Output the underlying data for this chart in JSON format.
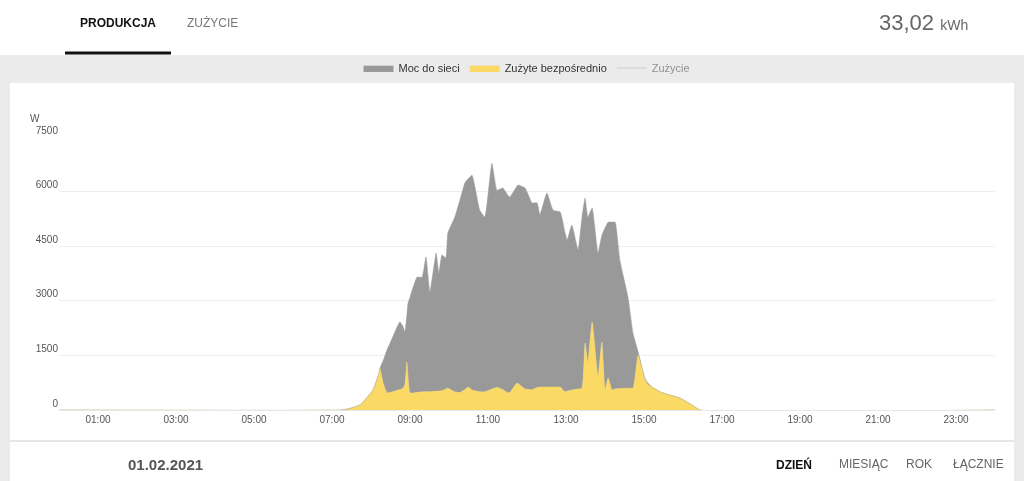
{
  "chart_data": {
    "type": "area",
    "stacked": true,
    "ylabel": "W",
    "x": [
      0,
      7.2,
      7.4,
      7.72,
      8.05,
      8.2,
      8.23,
      8.31,
      8.41,
      8.49,
      8.74,
      8.82,
      8.87,
      8.92,
      8.95,
      9.0,
      9.18,
      9.31,
      9.41,
      9.51,
      9.67,
      9.74,
      9.82,
      9.92,
      9.97,
      10.15,
      10.28,
      10.41,
      10.49,
      10.59,
      10.79,
      10.92,
      11.1,
      11.23,
      11.38,
      11.51,
      11.56,
      11.74,
      11.77,
      11.95,
      12.13,
      12.26,
      12.33,
      12.51,
      12.67,
      12.85,
      12.97,
      13.03,
      13.15,
      13.31,
      13.41,
      13.49,
      13.56,
      13.67,
      13.82,
      13.92,
      14.0,
      14.08,
      14.18,
      14.26,
      14.38,
      14.59,
      14.72,
      14.85,
      15.03,
      15.1,
      15.21,
      15.41,
      15.67,
      15.92,
      16.23,
      16.44,
      24
    ],
    "series": [
      {
        "name": "Zużyte bezpośrednio",
        "color": "#fad964",
        "values": [
          0,
          0,
          30,
          140,
          550,
          1000,
          1150,
          740,
          470,
          480,
          560,
          600,
          700,
          1320,
          900,
          470,
          480,
          500,
          500,
          500,
          520,
          520,
          530,
          580,
          600,
          500,
          480,
          560,
          630,
          550,
          500,
          500,
          580,
          620,
          560,
          470,
          480,
          740,
          730,
          580,
          560,
          620,
          630,
          630,
          630,
          630,
          500,
          520,
          550,
          580,
          600,
          1840,
          1290,
          2420,
          910,
          1870,
          550,
          880,
          550,
          580,
          590,
          600,
          600,
          1510,
          820,
          700,
          630,
          500,
          410,
          330,
          140,
          0,
          0
        ]
      },
      {
        "name": "Moc do sieci",
        "color": "#999999",
        "values": [
          0,
          0,
          0,
          0,
          0,
          0,
          0,
          610,
          1180,
          1360,
          1860,
          1700,
          1440,
          1280,
          2040,
          2630,
          3170,
          3150,
          3700,
          2740,
          3790,
          3240,
          3730,
          3600,
          4260,
          4800,
          5290,
          5680,
          5720,
          5900,
          4990,
          4800,
          6200,
          5420,
          5540,
          5430,
          5370,
          5410,
          5450,
          5520,
          5130,
          5070,
          4730,
          5330,
          4860,
          4810,
          4400,
          4150,
          4530,
          3820,
          4700,
          3980,
          4010,
          3130,
          3400,
          2930,
          4450,
          4280,
          4610,
          4580,
          3530,
          2500,
          1500,
          90,
          30,
          40,
          0,
          0,
          0,
          0,
          0,
          0,
          0
        ]
      },
      {
        "name": "Zużycie",
        "type": "line",
        "color": "#cccccc",
        "values": [
          null,
          null,
          null,
          null,
          null,
          null,
          null,
          null,
          null,
          null,
          null,
          null,
          null,
          null,
          null,
          null,
          null,
          null,
          null,
          null,
          null,
          null,
          null,
          null,
          null,
          null,
          null,
          null,
          null,
          null,
          null,
          null,
          null,
          null,
          null,
          null,
          null,
          null,
          null,
          null,
          null,
          null,
          null,
          null,
          null,
          null,
          null,
          null,
          null,
          null,
          null,
          null,
          null,
          null,
          null,
          null,
          null,
          null,
          null,
          null,
          null,
          null,
          null,
          null,
          null,
          null,
          null,
          null,
          null,
          null,
          null,
          null,
          null
        ]
      }
    ],
    "xlim": [
      0,
      24
    ],
    "xticks": [
      {
        "value": 1,
        "label": "01:00"
      },
      {
        "value": 3,
        "label": "03:00"
      },
      {
        "value": 5,
        "label": "05:00"
      },
      {
        "value": 7,
        "label": "07:00"
      },
      {
        "value": 9,
        "label": "09:00"
      },
      {
        "value": 11,
        "label": "11:00"
      },
      {
        "value": 13,
        "label": "13:00"
      },
      {
        "value": 15,
        "label": "15:00"
      },
      {
        "value": 17,
        "label": "17:00"
      },
      {
        "value": 19,
        "label": "19:00"
      },
      {
        "value": 21,
        "label": "21:00"
      },
      {
        "value": 23,
        "label": "23:00"
      }
    ],
    "ylim": [
      0,
      7500
    ],
    "yticks": [
      0,
      1500,
      3000,
      4500,
      6000,
      7500
    ],
    "grid": "y",
    "legend": "top",
    "annotations": [
      "PRODUKCJA",
      "ZUŻYCIE",
      "33,02 kWh",
      "01.02.2021",
      "DZIEŃ",
      "MIESIĄC",
      "ROK",
      "ŁĄCZNIE"
    ]
  }
}
